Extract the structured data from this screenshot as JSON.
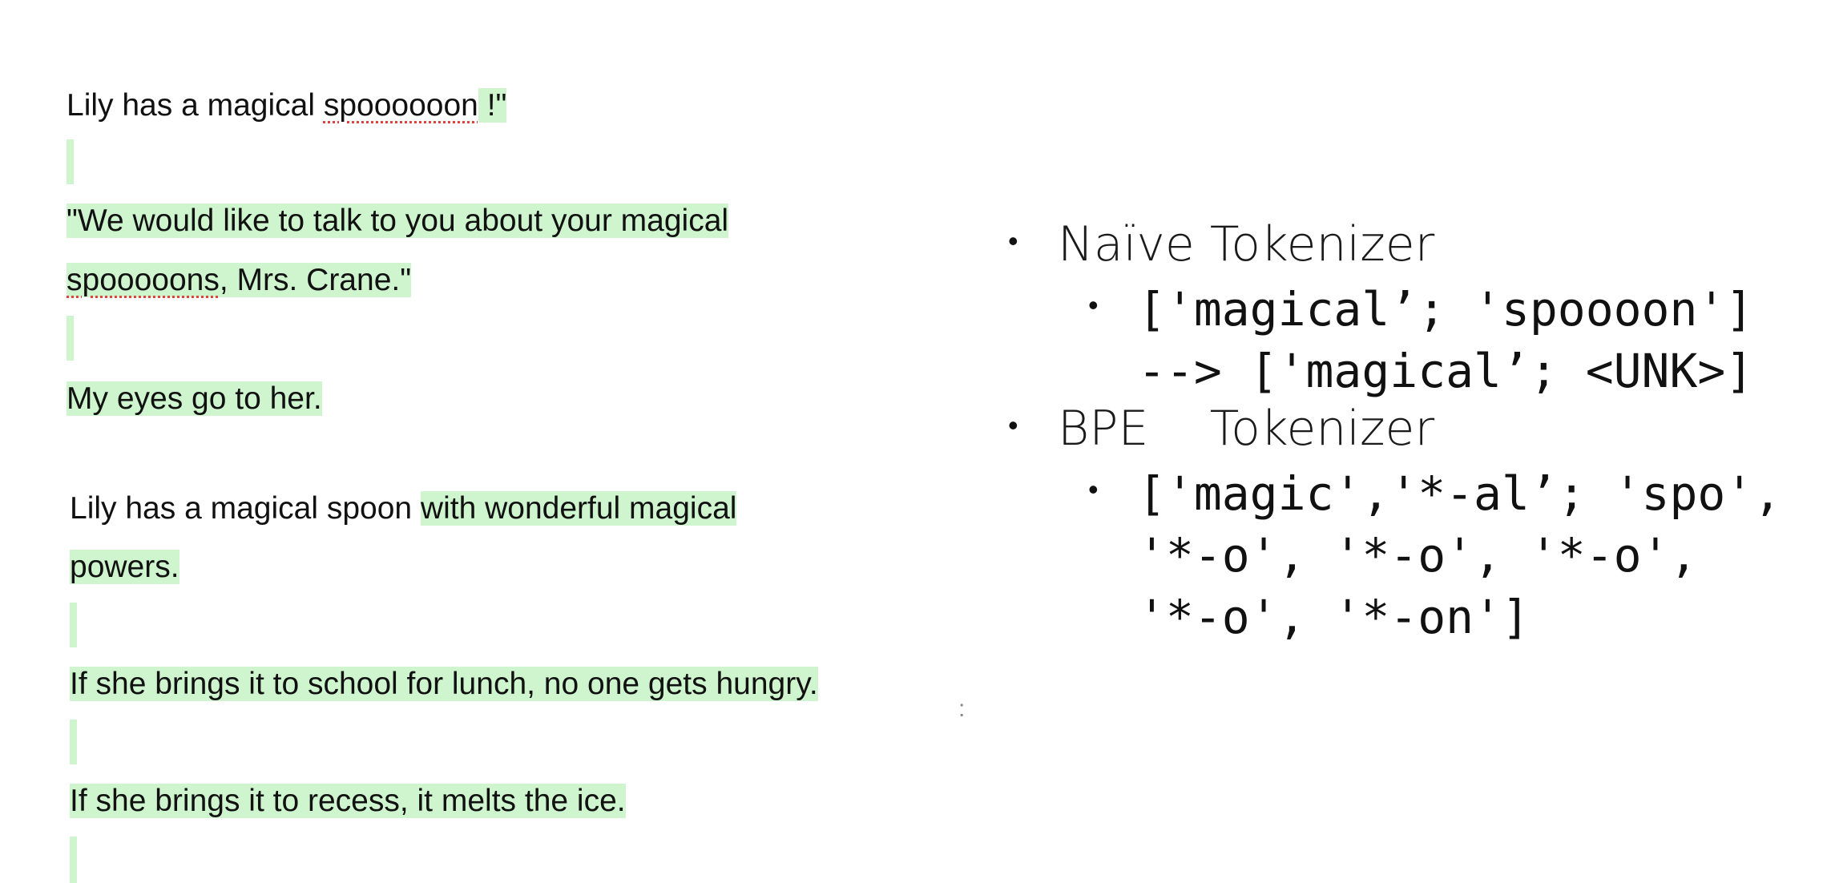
{
  "document": {
    "line1": {
      "text": "Lily has a magical ",
      "misspelled": "spoooooon",
      "after": " !\""
    },
    "line2": {
      "text": "\"We would like to talk to you about your magical "
    },
    "line3": {
      "misspelled": "spooooons",
      "text": ", Mrs. Crane.\""
    },
    "line4": {
      "text": "My eyes go to her."
    },
    "line5": {
      "plain": "Lily has a magical spoon ",
      "highlighted": "with wonderful magical "
    },
    "line6": {
      "text": "powers."
    },
    "line7": {
      "text": "If she brings it to school for lunch, no one gets hungry."
    },
    "line8": {
      "text": "If she brings it to recess, it melts the ice."
    },
    "stray_mark": ":"
  },
  "slide": {
    "bullet1": {
      "label": "Naïve Tokenizer"
    },
    "bullet1_sub": {
      "line1": "['magical’; 'spoooon']",
      "line2": "--> ['magical’; <UNK>]"
    },
    "bullet2": {
      "label": "BPE    Tokenizer"
    },
    "bullet2_sub": {
      "line1": "['magic','*-al’; 'spo',",
      "line2": "'*-o', '*-o', '*-o',",
      "line3": "'*-o', '*-on']"
    }
  },
  "colors": {
    "highlight": "#cff5cf",
    "spellcheck_underline": "#e0443e",
    "text": "#111111"
  }
}
